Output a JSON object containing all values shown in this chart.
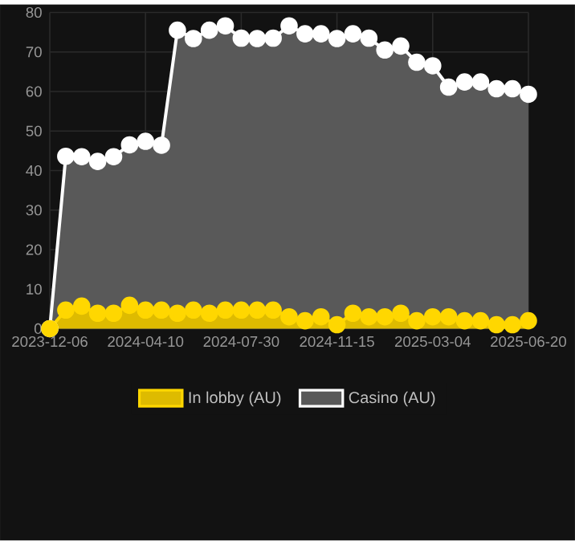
{
  "chart_data": {
    "type": "area",
    "categories": [
      "2023-12-06",
      null,
      null,
      null,
      null,
      null,
      "2024-04-10",
      null,
      null,
      null,
      null,
      null,
      "2024-07-30",
      null,
      null,
      null,
      null,
      null,
      "2024-11-15",
      null,
      null,
      null,
      null,
      null,
      "2025-03-04",
      null,
      null,
      null,
      null,
      null,
      "2025-06-20"
    ],
    "series": [
      {
        "name": "In lobby (AU)",
        "color": "#ffd700",
        "values": [
          0,
          4.7,
          5.7,
          3.9,
          3.9,
          5.9,
          4.7,
          4.7,
          3.9,
          4.7,
          3.9,
          4.7,
          4.7,
          4.7,
          4.7,
          3,
          2,
          3,
          1,
          3.9,
          3,
          3,
          3.9,
          2,
          3,
          3,
          2,
          2,
          1,
          1,
          2
        ]
      },
      {
        "name": "Casino (AU)",
        "color": "#ffffff",
        "values": [
          0,
          43.6,
          43.5,
          42.3,
          43.5,
          46.5,
          47.4,
          46.4,
          75.5,
          73.4,
          75.5,
          76.6,
          73.5,
          73.4,
          73.5,
          76.6,
          74.6,
          74.6,
          73.4,
          74.6,
          73.5,
          70.5,
          71.5,
          67.4,
          66.5,
          61.1,
          62.4,
          62.4,
          60.7,
          60.7,
          59.3
        ]
      }
    ],
    "ylim": [
      0,
      80
    ],
    "yticks": [
      0,
      10,
      20,
      30,
      40,
      50,
      60,
      70,
      80
    ],
    "grid": true,
    "legend": "bottom",
    "marker": "circle",
    "line_style": "solid"
  }
}
